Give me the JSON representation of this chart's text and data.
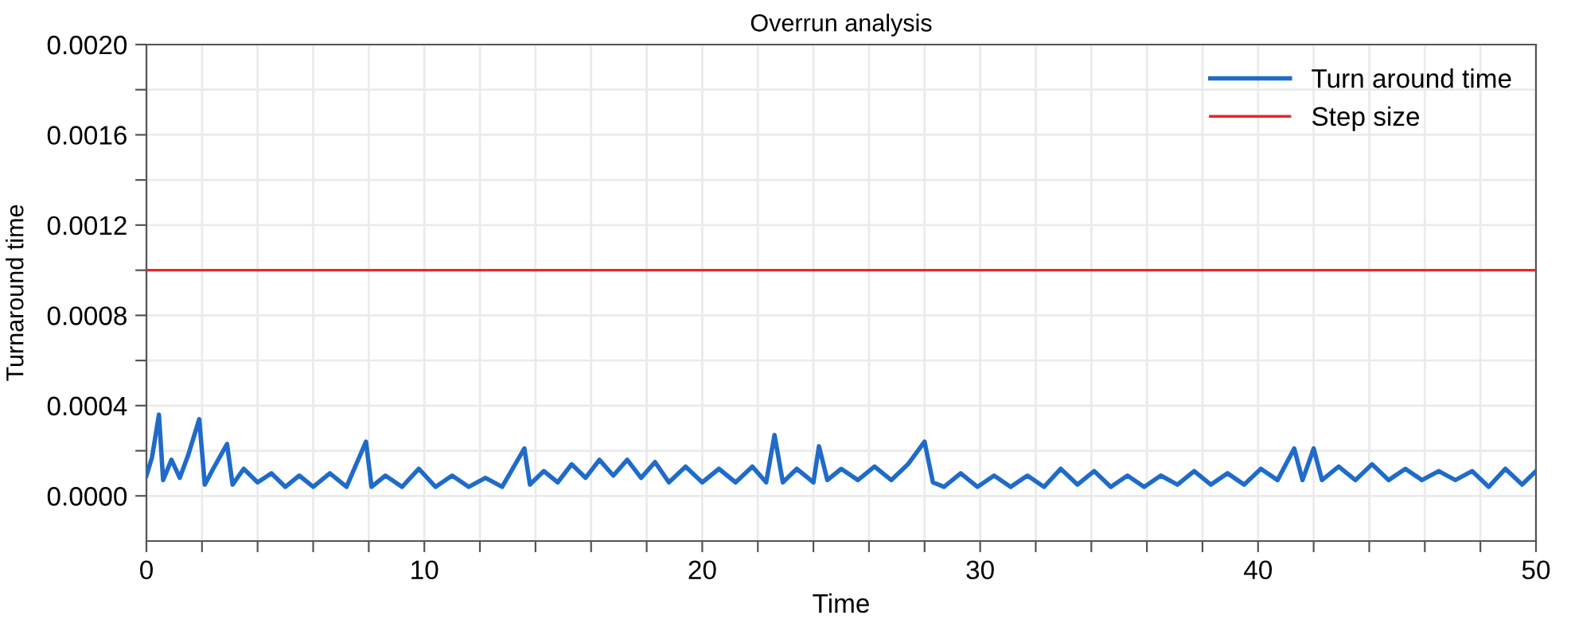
{
  "chart_data": {
    "type": "line",
    "title": "Overrun analysis",
    "xlabel": "Time",
    "ylabel": "Turnaround time",
    "xlim": [
      0,
      50
    ],
    "ylim": [
      -0.0002,
      0.002
    ],
    "xticks": [
      0,
      {
        "value": 2,
        "label": null
      },
      {
        "value": 4,
        "label": null
      },
      {
        "value": 6,
        "label": null
      },
      {
        "value": 8,
        "label": null
      },
      10,
      {
        "value": 12,
        "label": null
      },
      {
        "value": 14,
        "label": null
      },
      {
        "value": 16,
        "label": null
      },
      {
        "value": 18,
        "label": null
      },
      20,
      {
        "value": 22,
        "label": null
      },
      {
        "value": 24,
        "label": null
      },
      {
        "value": 26,
        "label": null
      },
      {
        "value": 28,
        "label": null
      },
      30,
      {
        "value": 32,
        "label": null
      },
      {
        "value": 34,
        "label": null
      },
      {
        "value": 36,
        "label": null
      },
      {
        "value": 38,
        "label": null
      },
      40,
      {
        "value": 42,
        "label": null
      },
      {
        "value": 44,
        "label": null
      },
      {
        "value": 46,
        "label": null
      },
      {
        "value": 48,
        "label": null
      },
      50
    ],
    "yticks": [
      {
        "value": 0,
        "label": "0.0000"
      },
      {
        "value": 0.0002,
        "label": null
      },
      {
        "value": 0.0004,
        "label": "0.0004"
      },
      {
        "value": 0.0006,
        "label": null
      },
      {
        "value": 0.0008,
        "label": "0.0008"
      },
      {
        "value": 0.001,
        "label": null
      },
      {
        "value": 0.0012,
        "label": "0.0012"
      },
      {
        "value": 0.0014,
        "label": null
      },
      {
        "value": 0.0016,
        "label": "0.0016"
      },
      {
        "value": 0.0018,
        "label": null
      },
      {
        "value": 0.002,
        "label": "0.0020"
      }
    ],
    "grid": true,
    "legend": "top right",
    "line_style": "solid",
    "series": [
      {
        "name": "Turn around time",
        "color": "#1f6bc9",
        "x": [
          0,
          0.2,
          0.45,
          0.6,
          0.9,
          1.2,
          1.5,
          1.9,
          2.1,
          2.4,
          2.9,
          3.1,
          3.5,
          4.0,
          4.5,
          5.0,
          5.5,
          6.0,
          6.6,
          7.2,
          7.9,
          8.1,
          8.6,
          9.2,
          9.8,
          10.4,
          11.0,
          11.6,
          12.2,
          12.8,
          13.6,
          13.8,
          14.3,
          14.8,
          15.3,
          15.8,
          16.3,
          16.8,
          17.3,
          17.8,
          18.3,
          18.8,
          19.4,
          20.0,
          20.6,
          21.2,
          21.8,
          22.3,
          22.6,
          22.9,
          23.4,
          24.0,
          24.2,
          24.5,
          25.0,
          25.6,
          26.2,
          26.8,
          27.4,
          28.0,
          28.3,
          28.7,
          29.3,
          29.9,
          30.5,
          31.1,
          31.7,
          32.3,
          32.9,
          33.5,
          34.1,
          34.7,
          35.3,
          35.9,
          36.5,
          37.1,
          37.7,
          38.3,
          38.9,
          39.5,
          40.1,
          40.7,
          41.3,
          41.6,
          42.0,
          42.3,
          42.9,
          43.5,
          44.1,
          44.7,
          45.3,
          45.9,
          46.5,
          47.1,
          47.7,
          48.3,
          48.9,
          49.5,
          50
        ],
        "values": [
          9e-05,
          0.00017,
          0.00036,
          7e-05,
          0.00016,
          8e-05,
          0.00018,
          0.00034,
          5e-05,
          0.00012,
          0.00023,
          5e-05,
          0.00012,
          6e-05,
          0.0001,
          4e-05,
          9e-05,
          4e-05,
          0.0001,
          4e-05,
          0.00024,
          4e-05,
          9e-05,
          4e-05,
          0.00012,
          4e-05,
          9e-05,
          4e-05,
          8e-05,
          4e-05,
          0.00021,
          5e-05,
          0.00011,
          6e-05,
          0.00014,
          8e-05,
          0.00016,
          9e-05,
          0.00016,
          8e-05,
          0.00015,
          6e-05,
          0.00013,
          6e-05,
          0.00012,
          6e-05,
          0.00013,
          6e-05,
          0.00027,
          6e-05,
          0.00012,
          6e-05,
          0.00022,
          7e-05,
          0.00012,
          7e-05,
          0.00013,
          7e-05,
          0.00014,
          0.00024,
          6e-05,
          4e-05,
          0.0001,
          4e-05,
          9e-05,
          4e-05,
          9e-05,
          4e-05,
          0.00012,
          5e-05,
          0.00011,
          4e-05,
          9e-05,
          4e-05,
          9e-05,
          5e-05,
          0.00011,
          5e-05,
          0.0001,
          5e-05,
          0.00012,
          7e-05,
          0.00021,
          7e-05,
          0.00021,
          7e-05,
          0.00013,
          7e-05,
          0.00014,
          7e-05,
          0.00012,
          7e-05,
          0.00011,
          7e-05,
          0.00011,
          4e-05,
          0.00012,
          5e-05,
          0.00011
        ]
      },
      {
        "name": "Step size",
        "color": "#e8262c",
        "x": [
          0,
          50
        ],
        "values": [
          0.001,
          0.001
        ]
      }
    ]
  }
}
